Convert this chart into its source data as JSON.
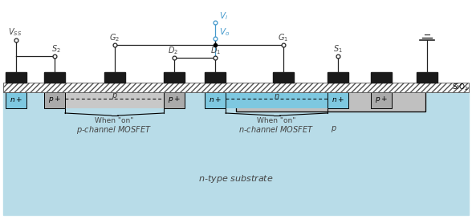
{
  "fig_width": 5.88,
  "fig_height": 2.78,
  "dpi": 100,
  "bg_blue": "#b8dce8",
  "metal_black": "#1a1a1a",
  "p_gray": "#aaaaaa",
  "n_blue": "#7ec8e0",
  "nwell_gray": "#c0c0c0",
  "cyan_text": "#4499cc",
  "dark_text": "#444444",
  "wire_color": "#222222",
  "substrate_blue": "#b8dce8"
}
